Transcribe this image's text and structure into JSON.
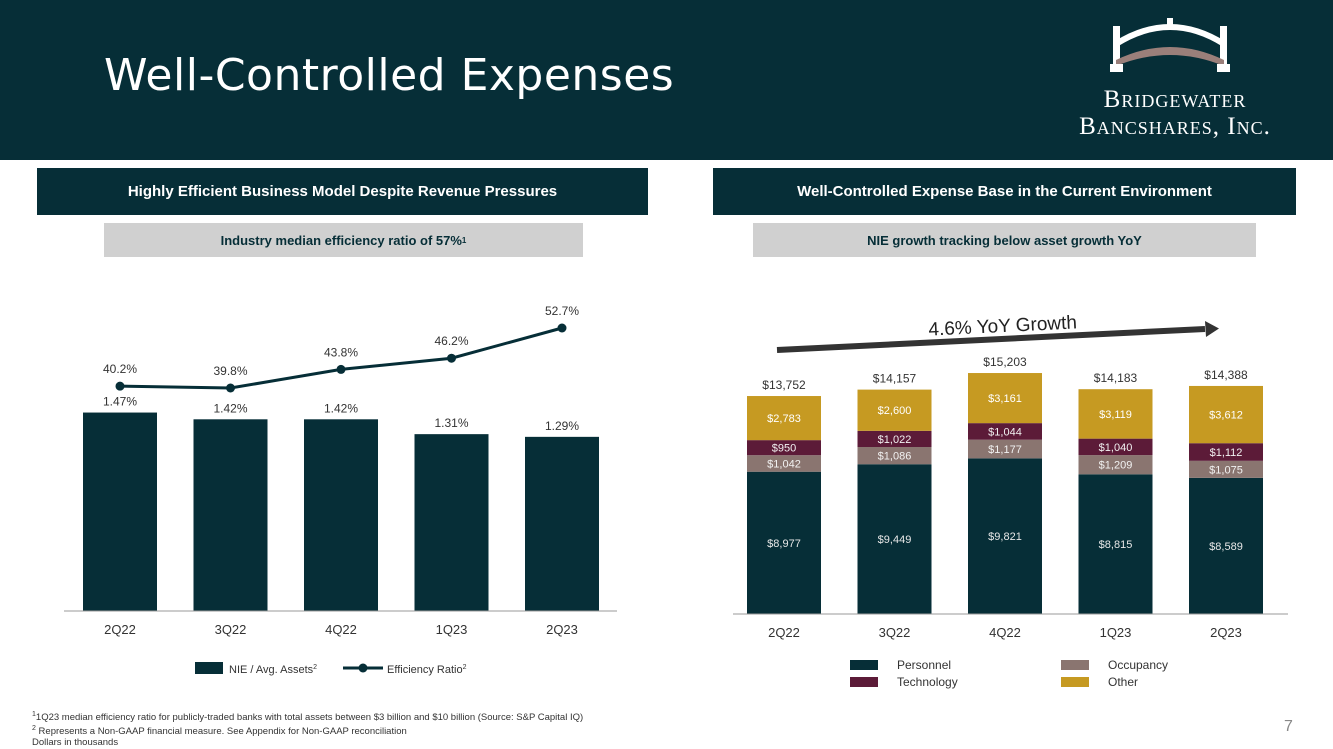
{
  "header": {
    "title": "Well-Controlled Expenses"
  },
  "logo": {
    "line1": "Bridgewater",
    "line2": "Bancshares, Inc."
  },
  "left_panel": {
    "heading": "Highly Efficient Business Model Despite Revenue Pressures",
    "subheading": "Industry median efficiency ratio of 57%",
    "subheading_sup": "1"
  },
  "right_panel": {
    "heading": "Well-Controlled Expense Base in the Current Environment",
    "subheading": "NIE growth tracking below asset growth YoY",
    "growth_label": "4.6% YoY Growth"
  },
  "colors": {
    "navy": "#062e37",
    "personnel": "#062e37",
    "occupancy": "#8a7570",
    "technology": "#5c1b38",
    "other": "#c69a22",
    "line": "#062e37"
  },
  "chart_data": [
    {
      "type": "bar",
      "categories": [
        "2Q22",
        "3Q22",
        "4Q22",
        "1Q23",
        "2Q23"
      ],
      "series": [
        {
          "name": "NIE / Avg. Assets",
          "sup": "2",
          "kind": "bar",
          "values": [
            1.47,
            1.42,
            1.42,
            1.31,
            1.29
          ],
          "labels": [
            "1.47%",
            "1.42%",
            "1.42%",
            "1.31%",
            "1.29%"
          ]
        },
        {
          "name": "Efficiency Ratio",
          "sup": "2",
          "kind": "line",
          "values": [
            40.2,
            39.8,
            43.8,
            46.2,
            52.7
          ],
          "labels": [
            "40.2%",
            "39.8%",
            "43.8%",
            "46.2%",
            "52.7%"
          ]
        }
      ],
      "legend": "bottom"
    },
    {
      "type": "bar",
      "stacked": true,
      "categories": [
        "2Q22",
        "3Q22",
        "4Q22",
        "1Q23",
        "2Q23"
      ],
      "series": [
        {
          "name": "Personnel",
          "values": [
            8977,
            9449,
            9821,
            8815,
            8589
          ],
          "labels": [
            "$8,977",
            "$9,449",
            "$9,821",
            "$8,815",
            "$8,589"
          ]
        },
        {
          "name": "Occupancy",
          "values": [
            1042,
            1086,
            1177,
            1209,
            1075
          ],
          "labels": [
            "$1,042",
            "$1,086",
            "$1,177",
            "$1,209",
            "$1,075"
          ]
        },
        {
          "name": "Technology",
          "values": [
            950,
            1022,
            1044,
            1040,
            1112
          ],
          "labels": [
            "$950",
            "$1,022",
            "$1,044",
            "$1,040",
            "$1,112"
          ]
        },
        {
          "name": "Other",
          "values": [
            2783,
            2600,
            3161,
            3119,
            3612
          ],
          "labels": [
            "$2,783",
            "$2,600",
            "$3,161",
            "$3,119",
            "$3,612"
          ]
        }
      ],
      "totals": [
        13752,
        14157,
        15203,
        14183,
        14388
      ],
      "total_labels": [
        "$13,752",
        "$14,157",
        "$15,203",
        "$14,183",
        "$14,388"
      ],
      "legend": "bottom"
    }
  ],
  "footnotes": {
    "note1_sup": "1",
    "note1": "1Q23 median efficiency ratio for publicly-traded banks with total assets between $3 billion and $10 billion (Source: S&P Capital IQ)",
    "note2_sup": "2",
    "note2": "Represents a Non-GAAP financial measure. See Appendix for Non-GAAP reconciliation",
    "note3": "Dollars in thousands"
  },
  "page_number": "7"
}
